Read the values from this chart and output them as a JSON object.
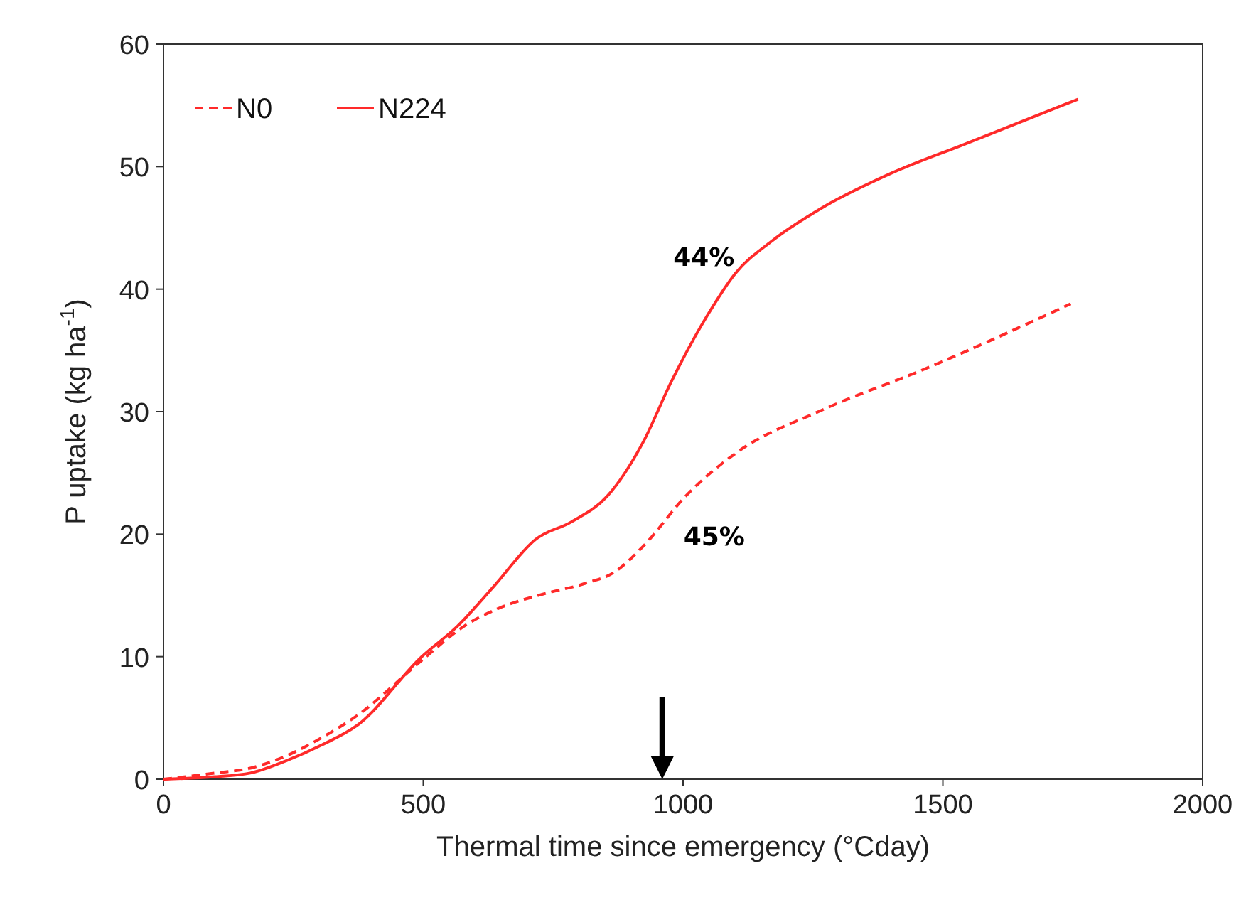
{
  "chart_data": {
    "type": "line",
    "xlabel": "Thermal time since emergency (°Cday)",
    "ylabel": "P uptake (kg ha$^{-1}$)",
    "xlim": [
      0,
      2000
    ],
    "xticks": [
      0,
      500,
      1000,
      1500,
      2000
    ],
    "ylim": [
      0,
      60
    ],
    "yticks": [
      0,
      10,
      20,
      30,
      40,
      50,
      60
    ],
    "grid": false,
    "legend": "top left",
    "marker": "none",
    "series": [
      {
        "name": "N0",
        "color": "#ff2a2a",
        "line_style": "dashed",
        "x": [
          0,
          99,
          167,
          236,
          305,
          373,
          497,
          579,
          648,
          730,
          813,
          868,
          923,
          1005,
          1101,
          1266,
          1472,
          1746
        ],
        "values": [
          0,
          0.5,
          0.9,
          1.9,
          3.4,
          5.2,
          9.7,
          12.5,
          14,
          15.1,
          16,
          16.9,
          19,
          23.1,
          26.6,
          30.1,
          33.6,
          38.8
        ]
      },
      {
        "name": "N224",
        "color": "#ff2a2a",
        "line_style": "solid",
        "x": [
          0,
          99,
          167,
          236,
          305,
          373,
          497,
          566,
          635,
          717,
          785,
          854,
          923,
          978,
          1046,
          1101,
          1170,
          1266,
          1403,
          1540,
          1760
        ],
        "values": [
          0,
          0.2,
          0.5,
          1.5,
          2.8,
          4.4,
          10,
          12.5,
          15.7,
          19.6,
          21,
          23.1,
          27.5,
          32.5,
          37.8,
          41.3,
          43.9,
          46.6,
          49.5,
          51.8,
          55.5
        ]
      }
    ],
    "annotations": [
      "44%",
      "45%"
    ]
  }
}
